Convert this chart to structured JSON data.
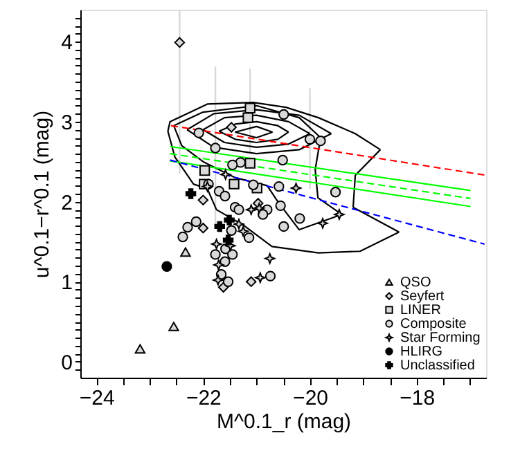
{
  "chart_data": {
    "type": "scatter",
    "xlabel": "M^0.1_r (mag)",
    "ylabel": "u^0.1−r^0.1 (mag)",
    "xlim": [
      -24.3,
      -16.7
    ],
    "ylim": [
      -0.2,
      4.4
    ],
    "xticks": [
      {
        "value": -24,
        "label": "−24"
      },
      {
        "value": -23.5,
        "label": null
      },
      {
        "value": -23,
        "label": null
      },
      {
        "value": -22.5,
        "label": null
      },
      {
        "value": -22,
        "label": "−22"
      },
      {
        "value": -21.5,
        "label": null
      },
      {
        "value": -21,
        "label": null
      },
      {
        "value": -20.5,
        "label": null
      },
      {
        "value": -20,
        "label": "−20"
      },
      {
        "value": -19.5,
        "label": null
      },
      {
        "value": -19,
        "label": null
      },
      {
        "value": -18.5,
        "label": null
      },
      {
        "value": -18,
        "label": "−18"
      },
      {
        "value": -17.5,
        "label": null
      },
      {
        "value": -17,
        "label": null
      }
    ],
    "yticks": [
      {
        "value": -0.1,
        "label": null
      },
      0,
      {
        "value": 0.1,
        "label": null
      },
      {
        "value": 0.2,
        "label": null
      },
      {
        "value": 0.3,
        "label": null
      },
      {
        "value": 0.4,
        "label": null
      },
      {
        "value": 0.5,
        "label": null
      },
      {
        "value": 0.6,
        "label": null
      },
      {
        "value": 0.7,
        "label": null
      },
      {
        "value": 0.8,
        "label": null
      },
      {
        "value": 0.9,
        "label": null
      },
      1,
      {
        "value": 1.1,
        "label": null
      },
      {
        "value": 1.2,
        "label": null
      },
      {
        "value": 1.3,
        "label": null
      },
      {
        "value": 1.4,
        "label": null
      },
      {
        "value": 1.5,
        "label": null
      },
      {
        "value": 1.6,
        "label": null
      },
      {
        "value": 1.7,
        "label": null
      },
      {
        "value": 1.8,
        "label": null
      },
      {
        "value": 1.9,
        "label": null
      },
      2,
      {
        "value": 2.1,
        "label": null
      },
      {
        "value": 2.2,
        "label": null
      },
      {
        "value": 2.3,
        "label": null
      },
      {
        "value": 2.4,
        "label": null
      },
      {
        "value": 2.5,
        "label": null
      },
      {
        "value": 2.6,
        "label": null
      },
      {
        "value": 2.7,
        "label": null
      },
      {
        "value": 2.8,
        "label": null
      },
      {
        "value": 2.9,
        "label": null
      },
      3,
      {
        "value": 3.1,
        "label": null
      },
      {
        "value": 3.2,
        "label": null
      },
      {
        "value": 3.3,
        "label": null
      },
      {
        "value": 3.4,
        "label": null
      },
      {
        "value": 3.5,
        "label": null
      },
      {
        "value": 3.6,
        "label": null
      },
      {
        "value": 3.7,
        "label": null
      },
      {
        "value": 3.8,
        "label": null
      },
      {
        "value": 3.9,
        "label": null
      },
      4,
      {
        "value": 4.1,
        "label": null
      },
      {
        "value": 4.2,
        "label": null
      },
      {
        "value": 4.3,
        "label": null
      }
    ],
    "grid": false,
    "legend": "bottom right",
    "series": [
      {
        "type": "line",
        "color": "#000000",
        "line_style": "solid",
        "x": [
          -22.66,
          -22.62,
          -21.92,
          -21.06,
          -20.45,
          -19.84,
          -19.15,
          -18.68
        ],
        "values": [
          2.88,
          3.0,
          3.22,
          3.24,
          3.18,
          3.05,
          2.85,
          2.65
        ]
      },
      {
        "type": "line",
        "color": "#000000",
        "line_style": "solid",
        "x": [
          -19.19,
          -19.15,
          -18.68
        ],
        "values": [
          1.93,
          2.33,
          2.65
        ]
      },
      {
        "type": "line",
        "color": "#000000",
        "line_style": "solid",
        "x": [
          -19.19,
          -18.33
        ],
        "values": [
          1.93,
          1.62
        ]
      },
      {
        "type": "line",
        "color": "#000000",
        "line_style": "solid",
        "x": [
          -22.66,
          -22.53,
          -22.18,
          -21.92,
          -21.75,
          -21.23,
          -20.71,
          -19.84,
          -19.06,
          -18.33
        ],
        "values": [
          2.88,
          2.56,
          2.22,
          2.16,
          1.9,
          1.7,
          1.44,
          1.36,
          1.38,
          1.62
        ]
      },
      {
        "type": "line",
        "color": "#000000",
        "line_style": "solid",
        "x": [
          -22.55,
          -22.0,
          -21.0,
          -20.2,
          -19.8
        ],
        "values": [
          2.95,
          3.12,
          3.2,
          3.05,
          2.8
        ]
      },
      {
        "type": "line",
        "color": "#000000",
        "line_style": "solid",
        "x": [
          -19.8,
          -19.9,
          -19.85,
          -19.4
        ],
        "values": [
          2.8,
          2.4,
          2.05,
          1.84
        ]
      },
      {
        "type": "line",
        "color": "#000000",
        "line_style": "solid",
        "x": [
          -22.55,
          -22.4,
          -22.0,
          -21.4,
          -20.8,
          -20.6,
          -20.2,
          -19.4
        ],
        "values": [
          2.95,
          2.7,
          2.5,
          2.3,
          2.2,
          2.0,
          1.65,
          1.84
        ]
      },
      {
        "type": "line",
        "color": "#000000",
        "line_style": "solid",
        "x": [
          -22.3,
          -21.8,
          -21.0,
          -20.2,
          -19.6
        ],
        "values": [
          2.9,
          3.1,
          3.15,
          3.08,
          2.85
        ]
      },
      {
        "type": "line",
        "color": "#000000",
        "line_style": "solid",
        "x": [
          -22.3,
          -21.8,
          -21.0,
          -20.2,
          -19.6
        ],
        "values": [
          2.9,
          2.68,
          2.6,
          2.65,
          2.85
        ]
      },
      {
        "type": "line",
        "color": "#000000",
        "line_style": "solid",
        "x": [
          -22.0,
          -21.6,
          -21.0,
          -20.4,
          -20.0
        ],
        "values": [
          2.9,
          3.05,
          3.08,
          3.0,
          2.85
        ]
      },
      {
        "type": "line",
        "color": "#000000",
        "line_style": "solid",
        "x": [
          -22.0,
          -21.6,
          -21.0,
          -20.4,
          -20.0
        ],
        "values": [
          2.9,
          2.74,
          2.68,
          2.72,
          2.85
        ]
      },
      {
        "type": "line",
        "color": "#000000",
        "line_style": "solid",
        "x": [
          -21.7,
          -21.4,
          -21.0,
          -20.6,
          -20.4
        ],
        "values": [
          2.88,
          2.97,
          3.0,
          2.95,
          2.87
        ]
      },
      {
        "type": "line",
        "color": "#000000",
        "line_style": "solid",
        "x": [
          -21.7,
          -21.4,
          -21.0,
          -20.6,
          -20.4
        ],
        "values": [
          2.88,
          2.78,
          2.74,
          2.78,
          2.87
        ]
      },
      {
        "type": "line",
        "color": "#000000",
        "line_style": "solid",
        "x": [
          -21.4,
          -21.0,
          -20.7
        ],
        "values": [
          2.87,
          2.94,
          2.87
        ]
      },
      {
        "type": "line",
        "color": "#000000",
        "line_style": "solid",
        "x": [
          -21.4,
          -21.0,
          -20.7
        ],
        "values": [
          2.87,
          2.8,
          2.87
        ]
      },
      {
        "type": "line",
        "color": "#ff0000",
        "line_style": "dashed",
        "x": [
          -22.6,
          -16.7
        ],
        "values": [
          2.95,
          2.33
        ]
      },
      {
        "type": "line",
        "color": "#00ff00",
        "line_style": "solid",
        "x": [
          -22.62,
          -16.99
        ],
        "values": [
          2.69,
          2.14
        ]
      },
      {
        "type": "line",
        "color": "#00ff00",
        "line_style": "dashed",
        "x": [
          -22.62,
          -16.99
        ],
        "values": [
          2.6,
          2.04
        ]
      },
      {
        "type": "line",
        "color": "#00ff00",
        "line_style": "solid",
        "x": [
          -22.62,
          -16.99
        ],
        "values": [
          2.51,
          1.94
        ]
      },
      {
        "type": "line",
        "color": "#0000ff",
        "line_style": "dashed",
        "x": [
          -22.62,
          -16.73
        ],
        "values": [
          2.52,
          1.47
        ]
      },
      {
        "name": "QSO",
        "color": "#d9d9d9",
        "marker": "triangle",
        "x": [
          -23.18,
          -22.55,
          -22.33
        ],
        "values": [
          0.16,
          0.44,
          1.37
        ]
      },
      {
        "name": "Seyfert",
        "color": "#d9d9d9",
        "marker": "diamond",
        "x": [
          -22.44,
          -22.0,
          -22.0,
          -21.47,
          -20.97,
          -21.62,
          -21.1
        ],
        "values": [
          3.99,
          2.02,
          1.67,
          2.93,
          1.98,
          0.93,
          1.0
        ],
        "errors": [
          [
            2.35,
            4.4
          ],
          null,
          null,
          null,
          null,
          null,
          null
        ]
      },
      {
        "name": "LINER",
        "color": "#d9d9d9",
        "marker": "square",
        "x": [
          -21.12,
          -21.16,
          -21.97,
          -21.12,
          -21.42,
          -20.99,
          -21.98
        ],
        "values": [
          3.17,
          3.05,
          2.39,
          2.48,
          2.22,
          2.17,
          2.22
        ],
        "errors": [
          [
            2.6,
            3.66
          ],
          null,
          null,
          null,
          null,
          null,
          null
        ]
      },
      {
        "name": "Composite",
        "color": "#d9d9d9",
        "marker": "circle",
        "x": [
          -22.08,
          -21.77,
          -20.49,
          -20.51,
          -21.3,
          -21.45,
          -20.58,
          -20.0,
          -19.8,
          -19.52,
          -21.9,
          -21.7,
          -21.59,
          -21.4,
          -21.33,
          -21.06,
          -20.8,
          -20.88,
          -20.55,
          -20.49,
          -20.19,
          -21.14,
          -21.47,
          -22.29,
          -22.13,
          -22.38,
          -21.58,
          -21.77,
          -21.59,
          -21.45,
          -21.66,
          -21.53,
          -20.74
        ],
        "values": [
          2.86,
          2.67,
          3.09,
          2.52,
          2.49,
          2.46,
          2.19,
          2.78,
          2.76,
          2.12,
          2.22,
          2.13,
          2.07,
          1.93,
          1.9,
          2.21,
          1.9,
          1.84,
          1.95,
          1.69,
          1.79,
          1.55,
          1.64,
          1.68,
          1.75,
          1.56,
          1.41,
          1.34,
          1.25,
          1.34,
          1.09,
          1.0,
          1.07
        ],
        "errors": [
          null,
          [
            1.7,
            3.69
          ],
          null,
          null,
          null,
          null,
          null,
          [
            2.16,
            3.42
          ],
          null,
          null,
          null,
          null,
          null,
          null,
          null,
          null,
          null,
          null,
          null,
          null,
          null,
          null,
          null,
          null,
          null,
          null,
          null,
          null,
          null,
          null,
          null,
          null,
          null
        ]
      },
      {
        "name": "Star Forming",
        "color": "#d9d9d9",
        "marker": "star",
        "x": [
          -20.26,
          -19.76,
          -19.45,
          -20.75,
          -20.93,
          -21.72,
          -21.75,
          -21.49,
          -21.33,
          -21.25,
          -21.71,
          -21.92,
          -20.95,
          -21.58,
          -21.1
        ],
        "values": [
          2.17,
          1.73,
          1.84,
          1.29,
          1.05,
          1.02,
          1.47,
          1.45,
          1.72,
          1.63,
          1.21,
          2.19,
          1.92,
          2.34,
          1.9
        ]
      },
      {
        "name": "HLIRG",
        "color": "#000000",
        "marker": "circle",
        "x": [
          -22.68
        ],
        "values": [
          1.19
        ]
      },
      {
        "name": "Unclassified",
        "color": "#000000",
        "marker": "cross",
        "x": [
          -22.23,
          -21.69,
          -21.51,
          -21.53
        ],
        "values": [
          2.1,
          1.69,
          1.77,
          1.52
        ]
      }
    ]
  }
}
